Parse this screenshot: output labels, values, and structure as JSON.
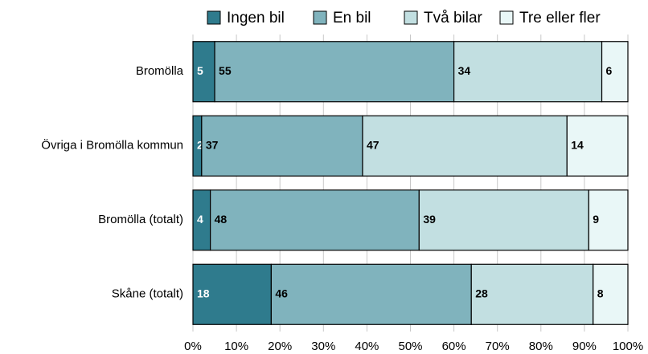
{
  "chart_data": {
    "type": "stacked-bar-horizontal",
    "categories": [
      "Bromölla",
      "Övriga i Bromölla kommun",
      "Bromölla (totalt)",
      "Skåne (totalt)"
    ],
    "series": [
      {
        "name": "Ingen bil",
        "color": "#2f7b8d",
        "values": [
          5,
          2,
          4,
          18
        ]
      },
      {
        "name": "En bil",
        "color": "#80b3bd",
        "values": [
          55,
          37,
          48,
          46
        ]
      },
      {
        "name": "Två bilar",
        "color": "#c2dfe1",
        "values": [
          34,
          47,
          39,
          28
        ]
      },
      {
        "name": "Tre eller fler",
        "color": "#e9f7f7",
        "values": [
          6,
          14,
          9,
          8
        ]
      }
    ],
    "xlim": [
      0,
      100
    ],
    "xticks": [
      {
        "value": 0,
        "label": "0%"
      },
      {
        "value": 10,
        "label": "10%"
      },
      {
        "value": 20,
        "label": "20%"
      },
      {
        "value": 30,
        "label": "30%"
      },
      {
        "value": 40,
        "label": "40%"
      },
      {
        "value": 50,
        "label": "50%"
      },
      {
        "value": 60,
        "label": "60%"
      },
      {
        "value": 70,
        "label": "70%"
      },
      {
        "value": 80,
        "label": "80%"
      },
      {
        "value": 90,
        "label": "90%"
      },
      {
        "value": 100,
        "label": "100%"
      }
    ],
    "grid": true,
    "legend": "top"
  }
}
